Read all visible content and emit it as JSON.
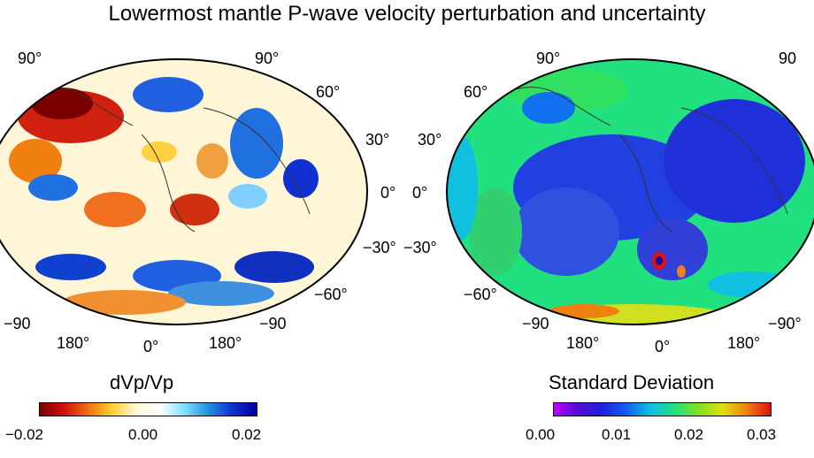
{
  "title": "Lowermost mantle P-wave velocity perturbation and uncertainty",
  "left_map": {
    "lat_labels": {
      "p90": "90°",
      "p60": "60°",
      "p30": "30°",
      "z": "0°",
      "m30": "−30°",
      "m60": "−60°",
      "m90": "−90"
    },
    "lon_labels": {
      "w": "180°",
      "c": "0°",
      "e": "180°"
    },
    "colorbar_title": "dVp/Vp",
    "colorbar_ticks": [
      "−0.02",
      "0.00",
      "0.02"
    ],
    "colorscale": [
      "#7a0000",
      "#d01010",
      "#f07010",
      "#ffd030",
      "#fff8d8",
      "#ffffff",
      "#80e0ff",
      "#2090e0",
      "#1030d0",
      "#00009a"
    ]
  },
  "right_map": {
    "lat_labels": {
      "p90": "90°",
      "p60": "60°",
      "p30": "30°",
      "z": "0°",
      "m30": "−30°",
      "m60": "−60°",
      "m90": "−90"
    },
    "lon_labels": {
      "w": "180°",
      "c": "0°",
      "e": "180°"
    },
    "right_lat_labels": {
      "p90": "90",
      "m90": "−90°"
    },
    "colorbar_title": "Standard Deviation",
    "colorbar_ticks": [
      "0.00",
      "0.01",
      "0.02",
      "0.03"
    ],
    "colorscale": [
      "#c000ff",
      "#5010d0",
      "#2020e0",
      "#1060f0",
      "#10c0e0",
      "#20e080",
      "#80e020",
      "#e0e010",
      "#f08010",
      "#e01010"
    ]
  }
}
